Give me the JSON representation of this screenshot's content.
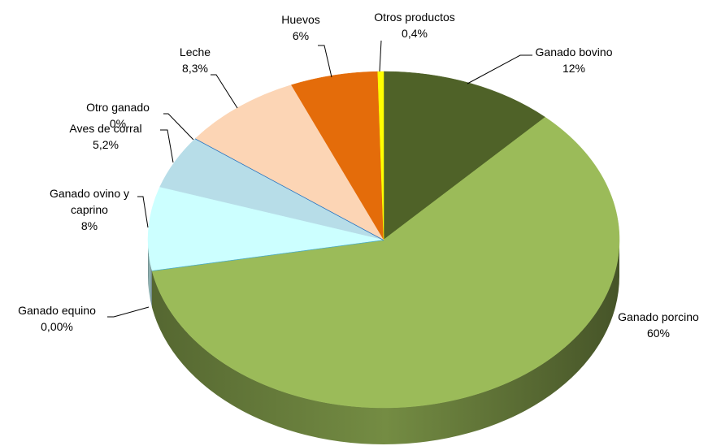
{
  "chart_data": {
    "type": "pie",
    "categories": [
      "Ganado bovino",
      "Ganado porcino",
      "Ganado equino",
      "Ganado ovino y caprino",
      "Aves de corral",
      "Otro ganado",
      "Leche",
      "Huevos",
      "Otros productos"
    ],
    "values": [
      12,
      60,
      0,
      8,
      5.2,
      0,
      8.3,
      6,
      0.4
    ],
    "value_labels": [
      "12%",
      "60%",
      "0,00%",
      "8%",
      "5,2%",
      "0%",
      "8,3%",
      "6%",
      "0,4%"
    ],
    "colors": [
      "#4f6228",
      "#9bbb59",
      "#4bacc6",
      "#ccffff",
      "#b7dde8",
      "#1f6fc0",
      "#fcd5b5",
      "#e46c0a",
      "#ffff00"
    ]
  }
}
